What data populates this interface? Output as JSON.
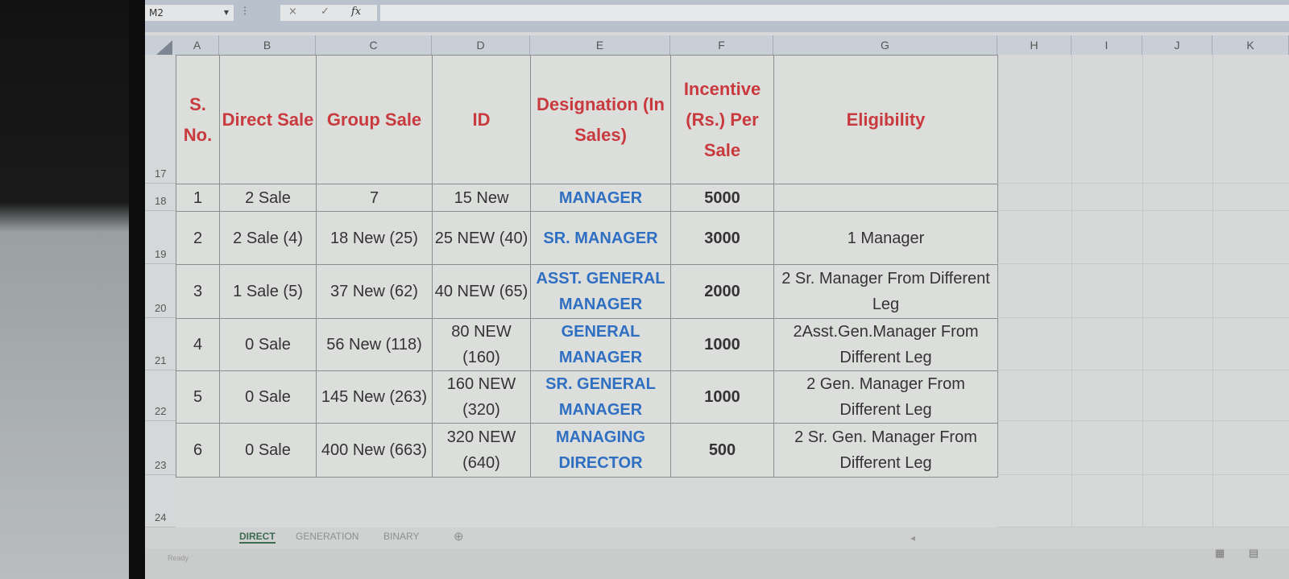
{
  "formula_bar": {
    "name_box": "M2",
    "cancel_icon": "×",
    "enter_icon": "✓",
    "fx_label": "fx",
    "formula": ""
  },
  "columns": [
    "A",
    "B",
    "C",
    "D",
    "E",
    "F",
    "G",
    "H",
    "I",
    "J",
    "K"
  ],
  "row_numbers": [
    "17",
    "18",
    "19",
    "20",
    "21",
    "22",
    "23",
    "24"
  ],
  "table": {
    "headers": [
      "S. No.",
      "Direct Sale",
      "Group Sale",
      "ID",
      "Designation (In Sales)",
      "Incentive (Rs.) Per Sale",
      "Eligibility"
    ],
    "rows": [
      [
        "1",
        "2 Sale",
        "7",
        "15 New",
        "MANAGER",
        "5000",
        ""
      ],
      [
        "2",
        "2 Sale (4)",
        "18 New (25)",
        "25 NEW (40)",
        "SR. MANAGER",
        "3000",
        "1 Manager"
      ],
      [
        "3",
        "1 Sale (5)",
        "37 New (62)",
        "40 NEW (65)",
        "ASST. GENERAL MANAGER",
        "2000",
        "2 Sr. Manager From Different Leg"
      ],
      [
        "4",
        "0 Sale",
        "56 New (118)",
        "80 NEW (160)",
        "GENERAL MANAGER",
        "1000",
        "2Asst.Gen.Manager From Different Leg"
      ],
      [
        "5",
        "0 Sale",
        "145 New (263)",
        "160 NEW (320)",
        "SR. GENERAL MANAGER",
        "1000",
        "2 Gen. Manager From Different Leg"
      ],
      [
        "6",
        "0 Sale",
        "400 New (663)",
        "320 NEW (640)",
        "MANAGING DIRECTOR",
        "500",
        "2 Sr. Gen. Manager From Different Leg"
      ]
    ]
  },
  "sheet_tabs": [
    {
      "label": "DIRECT",
      "active": true
    },
    {
      "label": "GENERATION",
      "active": false
    },
    {
      "label": "BINARY",
      "active": false
    }
  ],
  "add_sheet_icon": "⊕",
  "status": "Ready",
  "colors": {
    "header_text": "#c93a3f",
    "designation_text": "#2f6fc2"
  }
}
